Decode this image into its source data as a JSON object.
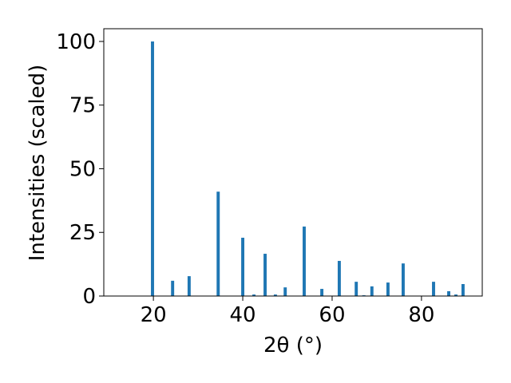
{
  "chart_data": {
    "type": "bar",
    "x_label": "2θ (°)",
    "y_label": "Intensities (scaled)",
    "x": [
      19.8,
      24.3,
      28.0,
      34.5,
      40.0,
      42.5,
      45.0,
      47.3,
      49.5,
      53.75,
      57.7,
      61.6,
      65.4,
      67.1,
      68.9,
      72.5,
      75.9,
      82.7,
      86.1,
      87.7,
      89.3
    ],
    "values": [
      100,
      6.0,
      7.8,
      41,
      22.9,
      0.6,
      16.6,
      0.6,
      3.4,
      27.3,
      2.8,
      13.8,
      5.6,
      0.3,
      3.8,
      5.3,
      12.8,
      5.6,
      1.9,
      0.6,
      4.7
    ],
    "color": "#1f77b4",
    "xlim": [
      8.9,
      93.6
    ],
    "xticks": [
      20,
      40,
      60,
      80
    ],
    "ylim": [
      0,
      105
    ],
    "yticks": [
      0,
      25,
      50,
      75,
      100
    ],
    "grid": false
  }
}
